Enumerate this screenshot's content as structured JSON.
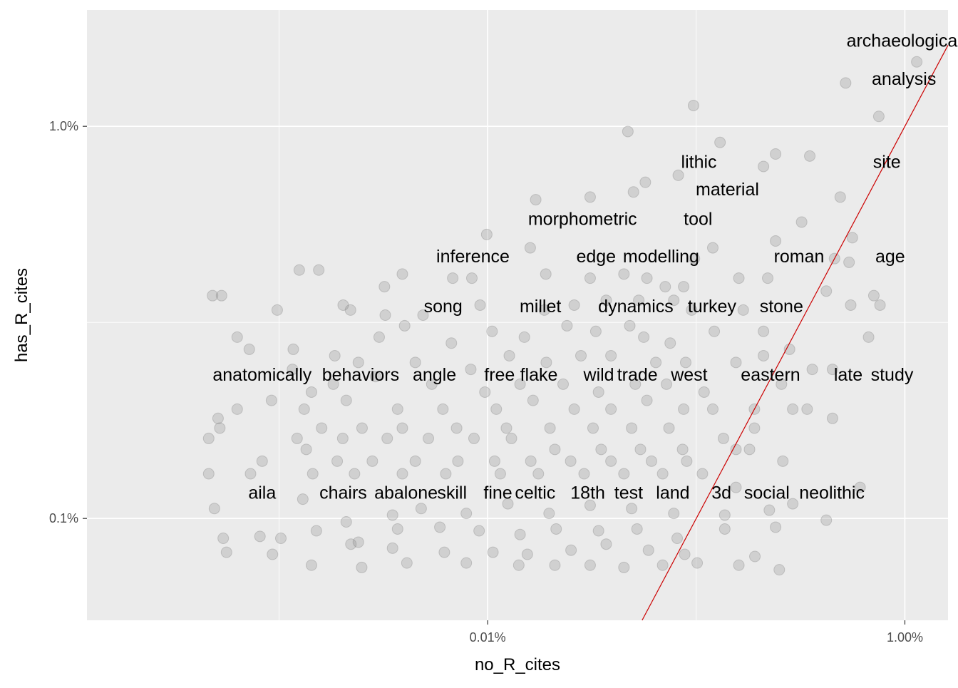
{
  "chart_data": {
    "type": "scatter",
    "xlabel": "no_R_cites",
    "ylabel": "has_R_cites",
    "x_scale": "log10",
    "y_scale": "log10",
    "xlim": [
      1.2e-06,
      0.0161
    ],
    "ylim": [
      0.00055,
      0.0198
    ],
    "x_ticks": [
      {
        "value": 0.0001,
        "label": "0.01%"
      },
      {
        "value": 0.01,
        "label": "1.00%"
      }
    ],
    "y_ticks": [
      {
        "value": 0.001,
        "label": "0.1%"
      },
      {
        "value": 0.01,
        "label": "1.0%"
      }
    ],
    "grid": true,
    "reference_line": {
      "slope": 1,
      "intercept": 0,
      "color": "#cc0000"
    },
    "colors": {
      "panel": "#ebebeb",
      "grid": "#ffffff",
      "point": "#808080",
      "reference_line": "#cc0000"
    },
    "labels": [
      {
        "text": "archaeological",
        "x": 0.0099,
        "y": 0.0165
      },
      {
        "text": "analysis",
        "x": 0.0099,
        "y": 0.0132
      },
      {
        "text": "lithic",
        "x": 0.00103,
        "y": 0.0081
      },
      {
        "text": "site",
        "x": 0.0082,
        "y": 0.0081
      },
      {
        "text": "material",
        "x": 0.00141,
        "y": 0.0069
      },
      {
        "text": "morphometric",
        "x": 0.000285,
        "y": 0.0058
      },
      {
        "text": "tool",
        "x": 0.00102,
        "y": 0.0058
      },
      {
        "text": "inference",
        "x": 8.5e-05,
        "y": 0.00465
      },
      {
        "text": "edge",
        "x": 0.000331,
        "y": 0.00465
      },
      {
        "text": "modelling",
        "x": 0.000678,
        "y": 0.00465
      },
      {
        "text": "roman",
        "x": 0.00311,
        "y": 0.00465
      },
      {
        "text": "age",
        "x": 0.0085,
        "y": 0.00465
      },
      {
        "text": "song",
        "x": 6.12e-05,
        "y": 0.00347
      },
      {
        "text": "millet",
        "x": 0.000179,
        "y": 0.00347
      },
      {
        "text": "dynamics",
        "x": 0.000513,
        "y": 0.00347
      },
      {
        "text": "turkey",
        "x": 0.00119,
        "y": 0.00347
      },
      {
        "text": "stone",
        "x": 0.00256,
        "y": 0.00347
      },
      {
        "text": "anatomically",
        "x": 8.3e-06,
        "y": 0.00232
      },
      {
        "text": "behaviors",
        "x": 2.46e-05,
        "y": 0.00232
      },
      {
        "text": "angle",
        "x": 5.56e-05,
        "y": 0.00232
      },
      {
        "text": "free",
        "x": 0.000114,
        "y": 0.00232
      },
      {
        "text": "flake",
        "x": 0.000176,
        "y": 0.00232
      },
      {
        "text": "wild",
        "x": 0.000341,
        "y": 0.00232
      },
      {
        "text": "trade",
        "x": 0.000522,
        "y": 0.00232
      },
      {
        "text": "west",
        "x": 0.000925,
        "y": 0.00232
      },
      {
        "text": "eastern",
        "x": 0.00227,
        "y": 0.00232
      },
      {
        "text": "late",
        "x": 0.00535,
        "y": 0.00232
      },
      {
        "text": "study",
        "x": 0.00868,
        "y": 0.00232
      },
      {
        "text": "aila",
        "x": 8.3e-06,
        "y": 0.00116
      },
      {
        "text": "chairs",
        "x": 2.03e-05,
        "y": 0.00116
      },
      {
        "text": "abalone",
        "x": 4.06e-05,
        "y": 0.00116
      },
      {
        "text": "skill",
        "x": 6.75e-05,
        "y": 0.00116
      },
      {
        "text": "fine",
        "x": 0.000112,
        "y": 0.00116
      },
      {
        "text": "celtic",
        "x": 0.000169,
        "y": 0.00116
      },
      {
        "text": "18th",
        "x": 0.000302,
        "y": 0.00116
      },
      {
        "text": "test",
        "x": 0.000474,
        "y": 0.00116
      },
      {
        "text": "land",
        "x": 0.000772,
        "y": 0.00116
      },
      {
        "text": "3d",
        "x": 0.00132,
        "y": 0.00116
      },
      {
        "text": "social",
        "x": 0.00218,
        "y": 0.00116
      },
      {
        "text": "neolithic",
        "x": 0.00447,
        "y": 0.00116
      }
    ],
    "points": [
      {
        "x": 0.0114,
        "y": 0.0146
      },
      {
        "x": 0.0052,
        "y": 0.0129
      },
      {
        "x": 0.0075,
        "y": 0.0106
      },
      {
        "x": 0.00097,
        "y": 0.0113
      },
      {
        "x": 0.00047,
        "y": 0.0097
      },
      {
        "x": 0.0013,
        "y": 0.0091
      },
      {
        "x": 0.0024,
        "y": 0.0085
      },
      {
        "x": 0.0035,
        "y": 0.0084
      },
      {
        "x": 0.0021,
        "y": 0.0079
      },
      {
        "x": 0.00082,
        "y": 0.0075
      },
      {
        "x": 0.00057,
        "y": 0.0072
      },
      {
        "x": 0.0005,
        "y": 0.0068
      },
      {
        "x": 0.0049,
        "y": 0.0066
      },
      {
        "x": 0.00031,
        "y": 0.0066
      },
      {
        "x": 0.00017,
        "y": 0.0065
      },
      {
        "x": 0.0032,
        "y": 0.0057
      },
      {
        "x": 0.0056,
        "y": 0.0052
      },
      {
        "x": 0.0024,
        "y": 0.0051
      },
      {
        "x": 9.9e-05,
        "y": 0.0053
      },
      {
        "x": 0.00016,
        "y": 0.0049
      },
      {
        "x": 0.0012,
        "y": 0.0049
      },
      {
        "x": 0.00098,
        "y": 0.0046
      },
      {
        "x": 0.0046,
        "y": 0.0046
      },
      {
        "x": 0.0054,
        "y": 0.0045
      },
      {
        "x": 3.9e-05,
        "y": 0.0042
      },
      {
        "x": 1.55e-05,
        "y": 0.0043
      },
      {
        "x": 1.25e-05,
        "y": 0.0043
      },
      {
        "x": 6.8e-05,
        "y": 0.0041
      },
      {
        "x": 8.4e-05,
        "y": 0.0041
      },
      {
        "x": 0.00019,
        "y": 0.0042
      },
      {
        "x": 0.00031,
        "y": 0.0041
      },
      {
        "x": 0.00045,
        "y": 0.0042
      },
      {
        "x": 0.00058,
        "y": 0.0041
      },
      {
        "x": 0.00071,
        "y": 0.0039
      },
      {
        "x": 0.00087,
        "y": 0.0039
      },
      {
        "x": 0.0016,
        "y": 0.0041
      },
      {
        "x": 0.0022,
        "y": 0.0041
      },
      {
        "x": 3.2e-05,
        "y": 0.0039
      },
      {
        "x": 0.0042,
        "y": 0.0038
      },
      {
        "x": 4.8e-06,
        "y": 0.0037
      },
      {
        "x": 5.3e-06,
        "y": 0.0037
      },
      {
        "x": 0.00078,
        "y": 0.0036
      },
      {
        "x": 0.00053,
        "y": 0.0036
      },
      {
        "x": 0.00037,
        "y": 0.0036
      },
      {
        "x": 0.00026,
        "y": 0.0035
      },
      {
        "x": 9.2e-05,
        "y": 0.0035
      },
      {
        "x": 0.0071,
        "y": 0.0037
      },
      {
        "x": 0.0076,
        "y": 0.0035
      },
      {
        "x": 9.8e-06,
        "y": 0.0034
      },
      {
        "x": 2.03e-05,
        "y": 0.0035
      },
      {
        "x": 2.2e-05,
        "y": 0.0034
      },
      {
        "x": 3.23e-05,
        "y": 0.0033
      },
      {
        "x": 4.9e-05,
        "y": 0.0033
      },
      {
        "x": 0.000187,
        "y": 0.0034
      },
      {
        "x": 0.00095,
        "y": 0.0034
      },
      {
        "x": 0.00168,
        "y": 0.0034
      },
      {
        "x": 0.0055,
        "y": 0.0035
      },
      {
        "x": 6.3e-06,
        "y": 0.0029
      },
      {
        "x": 1.17e-05,
        "y": 0.0027
      },
      {
        "x": 1.85e-05,
        "y": 0.0026
      },
      {
        "x": 3.02e-05,
        "y": 0.0029
      },
      {
        "x": 4e-05,
        "y": 0.0031
      },
      {
        "x": 6.7e-05,
        "y": 0.0028
      },
      {
        "x": 0.000105,
        "y": 0.003
      },
      {
        "x": 0.00015,
        "y": 0.0029
      },
      {
        "x": 0.00024,
        "y": 0.0031
      },
      {
        "x": 0.00033,
        "y": 0.003
      },
      {
        "x": 0.00048,
        "y": 0.0031
      },
      {
        "x": 0.00056,
        "y": 0.0029
      },
      {
        "x": 0.00075,
        "y": 0.0028
      },
      {
        "x": 0.00122,
        "y": 0.003
      },
      {
        "x": 0.0021,
        "y": 0.003
      },
      {
        "x": 0.0028,
        "y": 0.0027
      },
      {
        "x": 0.0067,
        "y": 0.0029
      },
      {
        "x": 7.2e-06,
        "y": 0.0027
      },
      {
        "x": 2.4e-05,
        "y": 0.0025
      },
      {
        "x": 4.5e-05,
        "y": 0.0025
      },
      {
        "x": 8.3e-05,
        "y": 0.0024
      },
      {
        "x": 0.000127,
        "y": 0.0026
      },
      {
        "x": 0.000191,
        "y": 0.0025
      },
      {
        "x": 0.00028,
        "y": 0.0026
      },
      {
        "x": 0.00039,
        "y": 0.0026
      },
      {
        "x": 0.00064,
        "y": 0.0025
      },
      {
        "x": 0.00089,
        "y": 0.0025
      },
      {
        "x": 0.00155,
        "y": 0.0025
      },
      {
        "x": 0.0021,
        "y": 0.0026
      },
      {
        "x": 0.0036,
        "y": 0.0024
      },
      {
        "x": 0.0045,
        "y": 0.0024
      },
      {
        "x": 1.16e-05,
        "y": 0.0024
      },
      {
        "x": 1.43e-05,
        "y": 0.0021
      },
      {
        "x": 1.82e-05,
        "y": 0.0022
      },
      {
        "x": 2.9e-05,
        "y": 0.0023
      },
      {
        "x": 5.4e-05,
        "y": 0.0022
      },
      {
        "x": 9.7e-05,
        "y": 0.0021
      },
      {
        "x": 0.000143,
        "y": 0.0022
      },
      {
        "x": 0.00023,
        "y": 0.0022
      },
      {
        "x": 0.00034,
        "y": 0.0021
      },
      {
        "x": 0.00051,
        "y": 0.0022
      },
      {
        "x": 0.00072,
        "y": 0.0022
      },
      {
        "x": 0.00109,
        "y": 0.0021
      },
      {
        "x": 0.00256,
        "y": 0.0022
      },
      {
        "x": 6.3e-06,
        "y": 0.0019
      },
      {
        "x": 9.2e-06,
        "y": 0.002
      },
      {
        "x": 1.32e-05,
        "y": 0.0019
      },
      {
        "x": 2.1e-05,
        "y": 0.002
      },
      {
        "x": 3.7e-05,
        "y": 0.0019
      },
      {
        "x": 6.1e-05,
        "y": 0.0019
      },
      {
        "x": 0.00011,
        "y": 0.0019
      },
      {
        "x": 0.000165,
        "y": 0.002
      },
      {
        "x": 0.00026,
        "y": 0.0019
      },
      {
        "x": 0.00039,
        "y": 0.0019
      },
      {
        "x": 0.00058,
        "y": 0.002
      },
      {
        "x": 0.00087,
        "y": 0.0019
      },
      {
        "x": 0.0012,
        "y": 0.0019
      },
      {
        "x": 0.0019,
        "y": 0.0019
      },
      {
        "x": 0.0029,
        "y": 0.0019
      },
      {
        "x": 0.0034,
        "y": 0.0019
      },
      {
        "x": 0.0045,
        "y": 0.0018
      },
      {
        "x": 5.1e-06,
        "y": 0.0018
      },
      {
        "x": 5.2e-06,
        "y": 0.0017
      },
      {
        "x": 1.6e-05,
        "y": 0.0017
      },
      {
        "x": 2.5e-05,
        "y": 0.0017
      },
      {
        "x": 3.9e-05,
        "y": 0.0017
      },
      {
        "x": 7.1e-05,
        "y": 0.0017
      },
      {
        "x": 0.000123,
        "y": 0.0017
      },
      {
        "x": 0.000199,
        "y": 0.0017
      },
      {
        "x": 0.00032,
        "y": 0.0017
      },
      {
        "x": 0.00049,
        "y": 0.0017
      },
      {
        "x": 0.00074,
        "y": 0.0017
      },
      {
        "x": 0.00135,
        "y": 0.0016
      },
      {
        "x": 0.0019,
        "y": 0.0017
      },
      {
        "x": 4.6e-06,
        "y": 0.0016
      },
      {
        "x": 1.22e-05,
        "y": 0.0016
      },
      {
        "x": 2.02e-05,
        "y": 0.0016
      },
      {
        "x": 3.3e-05,
        "y": 0.0016
      },
      {
        "x": 5.2e-05,
        "y": 0.0016
      },
      {
        "x": 8.6e-05,
        "y": 0.0016
      },
      {
        "x": 0.00013,
        "y": 0.0016
      },
      {
        "x": 0.00021,
        "y": 0.0015
      },
      {
        "x": 0.00035,
        "y": 0.0015
      },
      {
        "x": 0.00054,
        "y": 0.0015
      },
      {
        "x": 0.00086,
        "y": 0.0015
      },
      {
        "x": 0.00155,
        "y": 0.0015
      },
      {
        "x": 0.0018,
        "y": 0.0015
      },
      {
        "x": 8.3e-06,
        "y": 0.0014
      },
      {
        "x": 1.35e-05,
        "y": 0.0015
      },
      {
        "x": 1.9e-05,
        "y": 0.0014
      },
      {
        "x": 2.8e-05,
        "y": 0.0014
      },
      {
        "x": 4.5e-05,
        "y": 0.0014
      },
      {
        "x": 7.2e-05,
        "y": 0.0014
      },
      {
        "x": 0.000108,
        "y": 0.0014
      },
      {
        "x": 0.000161,
        "y": 0.0014
      },
      {
        "x": 0.00025,
        "y": 0.0014
      },
      {
        "x": 0.00039,
        "y": 0.0014
      },
      {
        "x": 0.00061,
        "y": 0.0014
      },
      {
        "x": 0.0009,
        "y": 0.0014
      },
      {
        "x": 0.0026,
        "y": 0.0014
      },
      {
        "x": 4.6e-06,
        "y": 0.0013
      },
      {
        "x": 7.3e-06,
        "y": 0.0013
      },
      {
        "x": 1.45e-05,
        "y": 0.0013
      },
      {
        "x": 2.3e-05,
        "y": 0.0013
      },
      {
        "x": 3.9e-05,
        "y": 0.0013
      },
      {
        "x": 6.3e-05,
        "y": 0.0013
      },
      {
        "x": 0.000115,
        "y": 0.0013
      },
      {
        "x": 0.000175,
        "y": 0.0013
      },
      {
        "x": 0.00029,
        "y": 0.0013
      },
      {
        "x": 0.00045,
        "y": 0.0013
      },
      {
        "x": 0.00069,
        "y": 0.0013
      },
      {
        "x": 0.00107,
        "y": 0.0013
      },
      {
        "x": 0.00155,
        "y": 0.0012
      },
      {
        "x": 0.0061,
        "y": 0.0012
      },
      {
        "x": 4.9e-06,
        "y": 0.00106
      },
      {
        "x": 1.3e-05,
        "y": 0.00112
      },
      {
        "x": 2.1e-05,
        "y": 0.00098
      },
      {
        "x": 3.5e-05,
        "y": 0.00102
      },
      {
        "x": 4.8e-05,
        "y": 0.00106
      },
      {
        "x": 7.9e-05,
        "y": 0.00103
      },
      {
        "x": 0.000125,
        "y": 0.00109
      },
      {
        "x": 0.000197,
        "y": 0.00103
      },
      {
        "x": 0.00031,
        "y": 0.00108
      },
      {
        "x": 0.00049,
        "y": 0.00106
      },
      {
        "x": 0.00078,
        "y": 0.00103
      },
      {
        "x": 0.00137,
        "y": 0.00102
      },
      {
        "x": 0.00224,
        "y": 0.00105
      },
      {
        "x": 0.0029,
        "y": 0.00109
      },
      {
        "x": 0.0042,
        "y": 0.00099
      },
      {
        "x": 5.4e-06,
        "y": 0.00089
      },
      {
        "x": 8.1e-06,
        "y": 0.0009
      },
      {
        "x": 1.02e-05,
        "y": 0.00089
      },
      {
        "x": 1.51e-05,
        "y": 0.00093
      },
      {
        "x": 2.4e-05,
        "y": 0.00087
      },
      {
        "x": 3.7e-05,
        "y": 0.00094
      },
      {
        "x": 5.9e-05,
        "y": 0.00095
      },
      {
        "x": 9.1e-05,
        "y": 0.00093
      },
      {
        "x": 0.000143,
        "y": 0.00091
      },
      {
        "x": 0.000213,
        "y": 0.00094
      },
      {
        "x": 0.00034,
        "y": 0.00093
      },
      {
        "x": 0.00052,
        "y": 0.00094
      },
      {
        "x": 0.00081,
        "y": 0.00089
      },
      {
        "x": 0.00137,
        "y": 0.00094
      },
      {
        "x": 0.0024,
        "y": 0.00095
      },
      {
        "x": 5.6e-06,
        "y": 0.00082
      },
      {
        "x": 9.3e-06,
        "y": 0.00081
      },
      {
        "x": 2.21e-05,
        "y": 0.00086
      },
      {
        "x": 3.5e-05,
        "y": 0.00084
      },
      {
        "x": 6.2e-05,
        "y": 0.00082
      },
      {
        "x": 0.000106,
        "y": 0.00082
      },
      {
        "x": 0.000155,
        "y": 0.00081
      },
      {
        "x": 0.000251,
        "y": 0.00083
      },
      {
        "x": 0.00037,
        "y": 0.00086
      },
      {
        "x": 0.00059,
        "y": 0.00083
      },
      {
        "x": 0.00088,
        "y": 0.00081
      },
      {
        "x": 0.00191,
        "y": 0.0008
      },
      {
        "x": 1.43e-05,
        "y": 0.00076
      },
      {
        "x": 2.49e-05,
        "y": 0.00075
      },
      {
        "x": 4.1e-05,
        "y": 0.00077
      },
      {
        "x": 7.9e-05,
        "y": 0.00077
      },
      {
        "x": 0.000141,
        "y": 0.00076
      },
      {
        "x": 0.00021,
        "y": 0.00076
      },
      {
        "x": 0.00031,
        "y": 0.00076
      },
      {
        "x": 0.00045,
        "y": 0.00075
      },
      {
        "x": 0.00069,
        "y": 0.00076
      },
      {
        "x": 0.00101,
        "y": 0.00077
      },
      {
        "x": 0.0016,
        "y": 0.00076
      },
      {
        "x": 0.0025,
        "y": 0.00074
      }
    ]
  }
}
